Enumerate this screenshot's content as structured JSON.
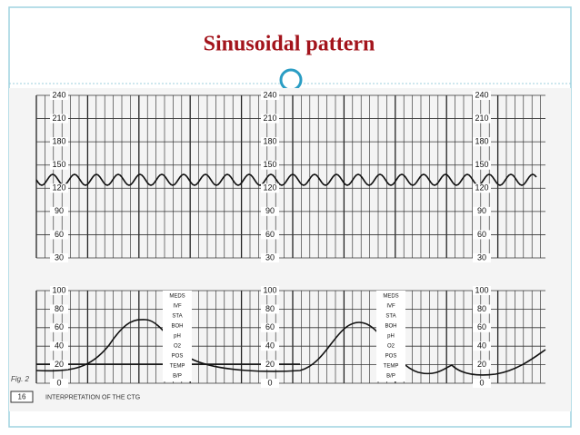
{
  "header": {
    "title": "Sinusoidal pattern"
  },
  "figure": {
    "fhr_scale": [
      240,
      210,
      180,
      150,
      120,
      90,
      60,
      30
    ],
    "uc_scale": [
      100,
      80,
      60,
      40,
      20,
      0
    ],
    "notes": [
      "MEDS",
      "IVF",
      "STA",
      "BOH",
      "pH",
      "O2",
      "POS",
      "TEMP",
      "B/P"
    ],
    "caption": "Fig. 2",
    "page_number": "16",
    "running_head": "INTERPRETATION OF THE CTG"
  }
}
